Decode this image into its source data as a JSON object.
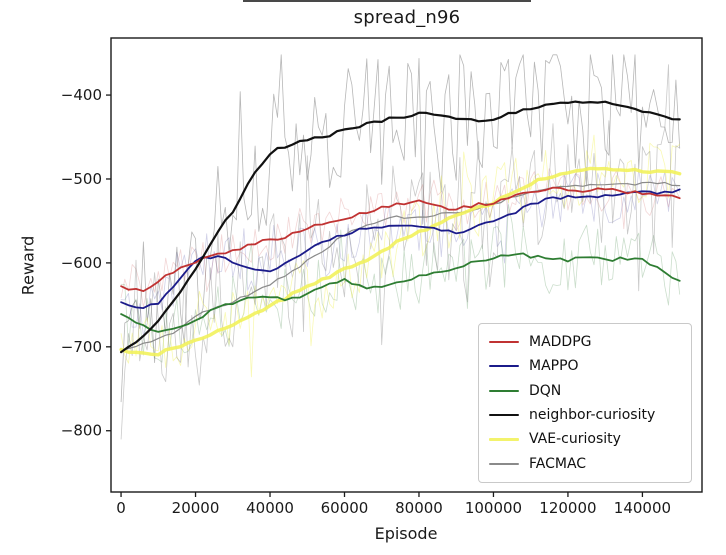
{
  "chart_data": {
    "type": "line",
    "title": "spread_n96",
    "xlabel": "Episode",
    "ylabel": "Reward",
    "grid": false,
    "legend_position": "lower-right-inside",
    "legend_entries": [
      "MADDPG",
      "MAPPO",
      "DQN",
      "neighbor-curiosity",
      "VAE-curiosity",
      "FACMAC"
    ],
    "xlim": [
      -2700,
      156000
    ],
    "ylim": [
      -873,
      -332
    ],
    "x_ticks": [
      0,
      20000,
      40000,
      60000,
      80000,
      100000,
      120000,
      140000
    ],
    "x_tick_labels": [
      "0",
      "20000",
      "40000",
      "60000",
      "80000",
      "100000",
      "120000",
      "140000"
    ],
    "y_ticks": [
      -400,
      -500,
      -600,
      -700,
      -800
    ],
    "y_tick_labels": [
      "−400",
      "−500",
      "−600",
      "−700",
      "−800"
    ],
    "spine_color": "#1a1a1a",
    "background": "#ffffff",
    "x_step": 5000,
    "x": [
      0,
      5000,
      10000,
      15000,
      20000,
      25000,
      30000,
      35000,
      40000,
      45000,
      50000,
      55000,
      60000,
      65000,
      70000,
      75000,
      80000,
      85000,
      90000,
      95000,
      100000,
      105000,
      110000,
      115000,
      120000,
      125000,
      130000,
      135000,
      140000,
      145000,
      150000
    ],
    "series": [
      {
        "name": "MADDPG",
        "color": "#c03232",
        "width": 1.8,
        "opacity": 1,
        "values": [
          -628,
          -634,
          -622,
          -607,
          -598,
          -592,
          -586,
          -578,
          -572,
          -568,
          -558,
          -552,
          -547,
          -541,
          -533,
          -529,
          -527,
          -534,
          -536,
          -531,
          -528,
          -522,
          -515,
          -512,
          -513,
          -514,
          -512,
          -515,
          -517,
          -519,
          -522
        ]
      },
      {
        "name": "MAPPO",
        "color": "#1b1b8a",
        "width": 1.8,
        "opacity": 1,
        "values": [
          -648,
          -656,
          -648,
          -625,
          -596,
          -592,
          -598,
          -608,
          -609,
          -600,
          -584,
          -574,
          -566,
          -559,
          -556,
          -555,
          -557,
          -560,
          -565,
          -556,
          -551,
          -541,
          -530,
          -524,
          -521,
          -520,
          -521,
          -518,
          -515,
          -517,
          -514
        ]
      },
      {
        "name": "DQN",
        "color": "#2e7d32",
        "width": 1.8,
        "opacity": 1,
        "values": [
          -660,
          -673,
          -681,
          -679,
          -668,
          -655,
          -648,
          -639,
          -641,
          -643,
          -638,
          -625,
          -620,
          -630,
          -627,
          -622,
          -616,
          -611,
          -606,
          -599,
          -596,
          -588,
          -592,
          -595,
          -597,
          -593,
          -597,
          -594,
          -596,
          -607,
          -623
        ]
      },
      {
        "name": "neighbor-curiosity",
        "color": "#111111",
        "width": 2.2,
        "opacity": 1,
        "values": [
          -705,
          -690,
          -668,
          -641,
          -607,
          -568,
          -538,
          -500,
          -469,
          -459,
          -454,
          -449,
          -441,
          -436,
          -430,
          -426,
          -422,
          -424,
          -427,
          -430,
          -428,
          -421,
          -415,
          -410,
          -408,
          -408,
          -409,
          -412,
          -418,
          -424,
          -430
        ]
      },
      {
        "name": "VAE-curiosity",
        "color": "#f2f25c",
        "width": 3.4,
        "opacity": 0.9,
        "values": [
          -703,
          -707,
          -708,
          -700,
          -692,
          -684,
          -674,
          -664,
          -652,
          -640,
          -628,
          -618,
          -608,
          -598,
          -585,
          -573,
          -563,
          -553,
          -543,
          -535,
          -529,
          -517,
          -506,
          -497,
          -493,
          -489,
          -486,
          -489,
          -491,
          -492,
          -493
        ]
      },
      {
        "name": "FACMAC",
        "color": "#8a8a8a",
        "width": 1.2,
        "opacity": 1,
        "values": [
          -705,
          -699,
          -691,
          -681,
          -665,
          -653,
          -646,
          -638,
          -625,
          -613,
          -598,
          -583,
          -566,
          -556,
          -549,
          -545,
          -547,
          -543,
          -540,
          -535,
          -529,
          -522,
          -516,
          -511,
          -509,
          -508,
          -507,
          -506,
          -505,
          -506,
          -506
        ]
      }
    ],
    "raw_noise": {
      "enabled": true,
      "seed": 20240601,
      "step": 1000,
      "clamp": [
        -852,
        -352
      ],
      "smooth_jitter": 2,
      "per_series": [
        {
          "amp": 26,
          "alpha": 0.2
        },
        {
          "amp": 32,
          "alpha": 0.2
        },
        {
          "amp": 38,
          "alpha": 0.25
        },
        {
          "amp": 80,
          "alpha": 0.3
        },
        {
          "amp": 42,
          "alpha": 0.45
        },
        {
          "amp": 85,
          "alpha": 0.45
        }
      ]
    }
  }
}
